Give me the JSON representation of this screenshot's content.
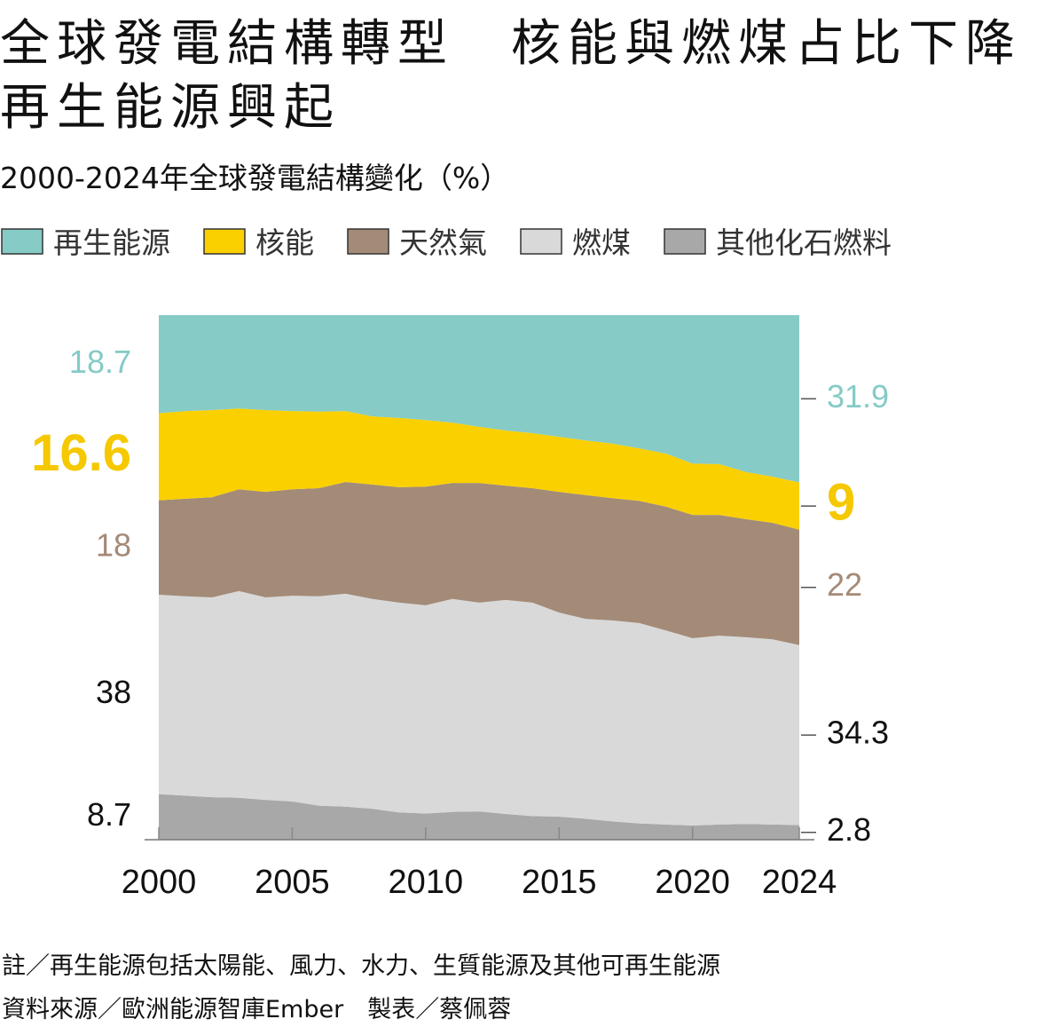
{
  "chart_data": {
    "type": "stacked_area",
    "title": [
      "全球發電結構轉型　核能與燃煤占比下降",
      "再生能源興起"
    ],
    "subtitle": "2000-2024年全球發電結構變化（%）",
    "x": [
      2000,
      2001,
      2002,
      2003,
      2004,
      2005,
      2006,
      2007,
      2008,
      2009,
      2010,
      2011,
      2012,
      2013,
      2014,
      2015,
      2016,
      2017,
      2018,
      2019,
      2020,
      2021,
      2022,
      2023,
      2024
    ],
    "xlim": [
      2000,
      2024
    ],
    "xticks": [
      2000,
      2005,
      2010,
      2015,
      2020,
      2024
    ],
    "ylim": [
      0,
      100
    ],
    "series": [
      {
        "name": "再生能源",
        "color": "#86cbc6",
        "values": [
          18.7,
          18.3,
          18.1,
          17.8,
          18.1,
          18.3,
          18.4,
          18.3,
          19.3,
          19.6,
          20.0,
          20.5,
          21.3,
          22.0,
          22.5,
          23.2,
          23.9,
          24.5,
          25.4,
          26.4,
          28.3,
          28.4,
          29.9,
          30.8,
          31.9
        ]
      },
      {
        "name": "核能",
        "color": "#fbd000",
        "values": [
          16.6,
          16.7,
          16.6,
          15.4,
          15.6,
          14.9,
          14.6,
          13.5,
          13.0,
          13.2,
          12.7,
          11.5,
          10.7,
          10.5,
          10.5,
          10.5,
          10.4,
          10.4,
          10.0,
          10.1,
          9.8,
          9.7,
          9.0,
          8.8,
          9
        ]
      },
      {
        "name": "天然氣",
        "color": "#a38b78",
        "values": [
          18,
          18.6,
          19.1,
          19.4,
          20.1,
          20.3,
          20.6,
          21.3,
          21.8,
          22.0,
          22.6,
          22.1,
          22.8,
          21.8,
          21.8,
          23.0,
          23.6,
          23.3,
          23.3,
          23.6,
          23.5,
          23.0,
          22.5,
          22.2,
          22
        ]
      },
      {
        "name": "燃煤",
        "color": "#d9d9d9",
        "values": [
          38,
          38.0,
          38.1,
          39.4,
          38.6,
          39.2,
          39.9,
          40.6,
          40.0,
          40.0,
          39.7,
          40.6,
          39.8,
          40.8,
          40.7,
          38.9,
          38.1,
          38.3,
          38.2,
          37.0,
          35.7,
          36.0,
          35.6,
          35.3,
          34.3
        ]
      },
      {
        "name": "其他化石燃料",
        "color": "#a8a8a8",
        "values": [
          8.7,
          8.4,
          8.1,
          8.0,
          7.6,
          7.3,
          6.5,
          6.3,
          5.9,
          5.2,
          5.0,
          5.3,
          5.4,
          4.9,
          4.5,
          4.4,
          4.0,
          3.5,
          3.1,
          2.9,
          2.7,
          2.9,
          3.0,
          2.9,
          2.8
        ]
      }
    ],
    "notes": [
      "註／再生能源包括太陽能、風力、水力、生質能源及其他可再生能源",
      "資料來源／歐洲能源智庫Ember　製表／蔡佩蓉"
    ]
  }
}
